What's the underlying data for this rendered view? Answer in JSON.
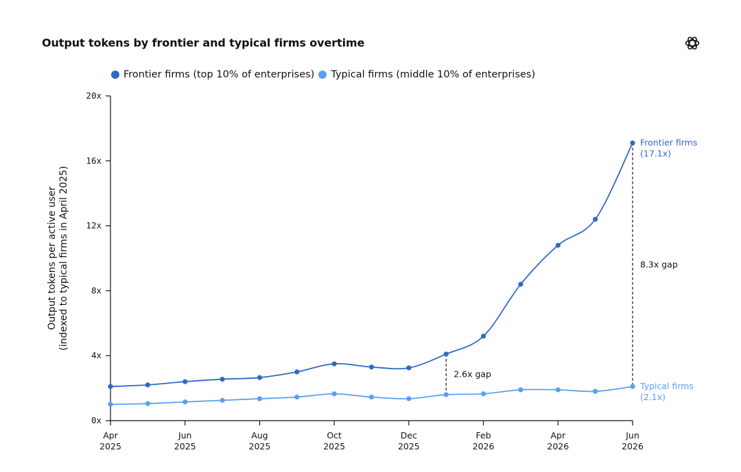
{
  "chart_data": {
    "type": "line",
    "title": "Output tokens by frontier and typical firms overtime",
    "ylabel": "Output tokens per active user (indexed to typical firms in April 2025)",
    "ylabel_lines": [
      "Output tokens per active user",
      "(indexed to typical firms in April 2025)"
    ],
    "ylim": [
      0,
      20
    ],
    "yticks": [
      0,
      4,
      8,
      12,
      16,
      20
    ],
    "ytick_labels": [
      "0x",
      "4x",
      "8x",
      "12x",
      "16x",
      "20x"
    ],
    "x": [
      0,
      1,
      2,
      3,
      4,
      5,
      6,
      7,
      8,
      9,
      10,
      11,
      12,
      13,
      14
    ],
    "xticks": [
      {
        "month": "Apr",
        "year": "2025",
        "index": 0
      },
      {
        "month": "Jun",
        "year": "2025",
        "index": 2
      },
      {
        "month": "Aug",
        "year": "2025",
        "index": 4
      },
      {
        "month": "Oct",
        "year": "2025",
        "index": 6
      },
      {
        "month": "Dec",
        "year": "2025",
        "index": 8
      },
      {
        "month": "Feb",
        "year": "2026",
        "index": 10
      },
      {
        "month": "Apr",
        "year": "2026",
        "index": 12
      },
      {
        "month": "Jun",
        "year": "2026",
        "index": 14
      }
    ],
    "series": [
      {
        "name": "Frontier firms (top 10% of enterprises)",
        "color": "#2f69c6",
        "values": [
          2.1,
          2.2,
          2.4,
          2.55,
          2.65,
          3.0,
          3.5,
          3.3,
          3.25,
          4.1,
          5.2,
          8.4,
          10.8,
          12.4,
          17.1
        ],
        "end_label": "Frontier firms",
        "end_value_label": "(17.1x)"
      },
      {
        "name": "Typical firms (middle 10% of enterprises)",
        "color": "#5aa0ef",
        "values": [
          1.0,
          1.05,
          1.15,
          1.25,
          1.35,
          1.45,
          1.65,
          1.45,
          1.35,
          1.6,
          1.65,
          1.9,
          1.9,
          1.8,
          2.1
        ],
        "end_label": "Typical firms",
        "end_value_label": "(2.1x)"
      }
    ],
    "annotations": [
      {
        "label": "2.6x gap",
        "index": 9
      },
      {
        "label": "8.3x gap",
        "index": 14
      }
    ],
    "legend_position": "top-left",
    "grid": false
  },
  "colors": {
    "frontier": "#2f69c6",
    "typical": "#5aa0ef",
    "axis": "#111111"
  },
  "logo_icon": "openai-logo-icon"
}
